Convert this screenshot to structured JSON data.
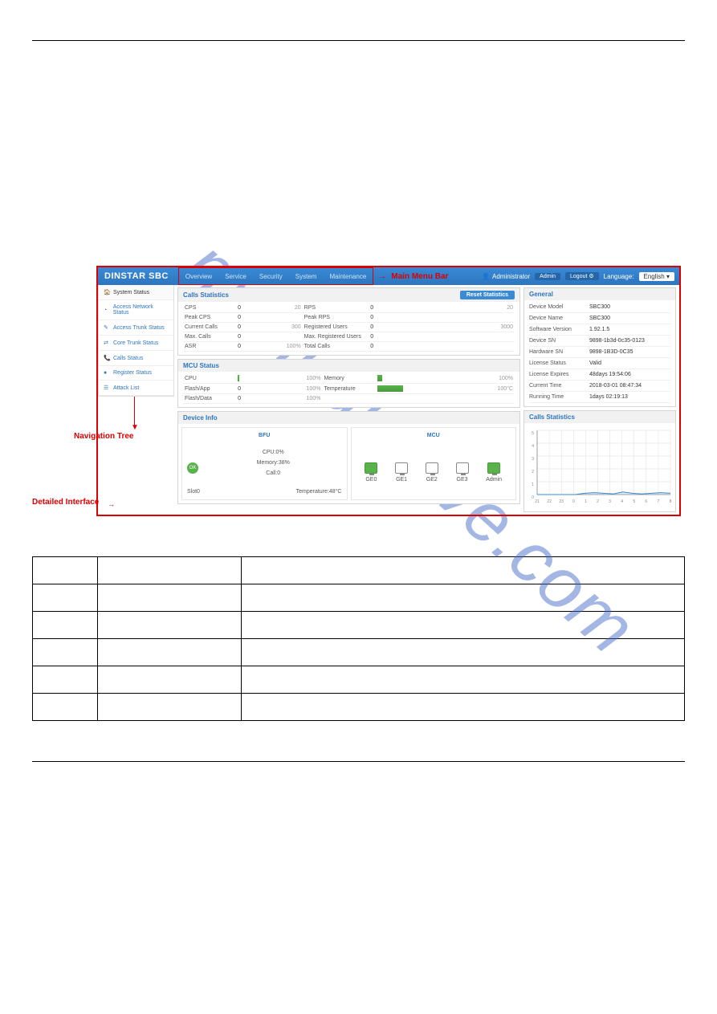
{
  "brand": "DINSTAR SBC",
  "menu": [
    "Overview",
    "Service",
    "Security",
    "System",
    "Maintenance"
  ],
  "menu_annot_label": "Main Menu Bar",
  "topbar": {
    "user": "Administrator",
    "admin": "Admin",
    "logout": "Logout",
    "lang_label": "Language:",
    "lang": "English"
  },
  "sidebar": {
    "items": [
      {
        "icon": "🏠",
        "label": "System Status",
        "sel": true
      },
      {
        "icon": "◔",
        "label": "Access Network Status"
      },
      {
        "icon": "✎",
        "label": "Access Trunk Status"
      },
      {
        "icon": "⇄",
        "label": "Core Trunk Status"
      },
      {
        "icon": "📞",
        "label": "Calls Status"
      },
      {
        "icon": "●",
        "label": "Register Status"
      },
      {
        "icon": "☰",
        "label": "Attack List"
      }
    ],
    "annot": "Navigation Tree"
  },
  "detailed_annot": "Detailed Interface",
  "calls_stats": {
    "title": "Calls Statistics",
    "reset": "Reset Statistics",
    "rows": [
      [
        "CPS",
        "0",
        "20",
        "RPS",
        "0",
        "20"
      ],
      [
        "Peak CPS",
        "0",
        "",
        "Peak RPS",
        "0",
        ""
      ],
      [
        "Current Calls",
        "0",
        "300",
        "Registered Users",
        "0",
        "3000"
      ],
      [
        "Max. Calls",
        "0",
        "",
        "Max. Registered Users",
        "0",
        ""
      ],
      [
        "ASR",
        "0",
        "100%",
        "Total Calls",
        "0",
        ""
      ]
    ]
  },
  "mcu": {
    "title": "MCU Status",
    "rows": [
      {
        "l": "CPU",
        "bar": 2,
        "max": "100%",
        "r": "Memory",
        "rbar": 6,
        "rmax": "100%"
      },
      {
        "l": "Flash/App",
        "lv": "0",
        "max": "100%",
        "r": "Temperature",
        "rbar": 32,
        "rmax": "100°C"
      },
      {
        "l": "Flash/Data",
        "lv": "0",
        "max": "100%"
      }
    ]
  },
  "general": {
    "title": "General",
    "rows": [
      [
        "Device Model",
        "SBC300"
      ],
      [
        "Device Name",
        "SBC300"
      ],
      [
        "Software Version",
        "1.92.1.5"
      ],
      [
        "Device SN",
        "9898-1b3d-0c35-0123"
      ],
      [
        "Hardware SN",
        "9898-1B3D-0C35"
      ],
      [
        "License Status",
        "Valid"
      ],
      [
        "License Expires",
        "48days 19:54:06"
      ],
      [
        "Current Time",
        "2018-03-01 08:47:34"
      ],
      [
        "Running Time",
        "1days 02:19:13"
      ]
    ]
  },
  "device_info": {
    "title": "Device Info",
    "bfu": {
      "title": "BFU",
      "cpu": "CPU:0%",
      "mem": "Memory:38%",
      "calls": "Call:0",
      "slot": "Slot0",
      "temp": "Temperature:48°C"
    },
    "mcu": {
      "title": "MCU",
      "ports": [
        {
          "name": "GE0",
          "up": true
        },
        {
          "name": "GE1",
          "up": false
        },
        {
          "name": "GE2",
          "up": false
        },
        {
          "name": "GE3",
          "up": false
        },
        {
          "name": "Admin",
          "up": true
        }
      ]
    }
  },
  "chart_panel": {
    "title": "Calls Statistics",
    "ymax": 5,
    "xticks": [
      "21",
      "22",
      "23",
      "0",
      "1",
      "2",
      "3",
      "4",
      "5",
      "6",
      "7",
      "8"
    ],
    "points": [
      0,
      0,
      0,
      0,
      0,
      0.1,
      0.15,
      0.1,
      0.05,
      0.2,
      0.1,
      0.05,
      0.1,
      0.15,
      0.1
    ]
  },
  "watermark": "manualshive.com",
  "colors": {
    "primary": "#3a8ad6",
    "red": "#d00",
    "green": "#5ab34a"
  }
}
